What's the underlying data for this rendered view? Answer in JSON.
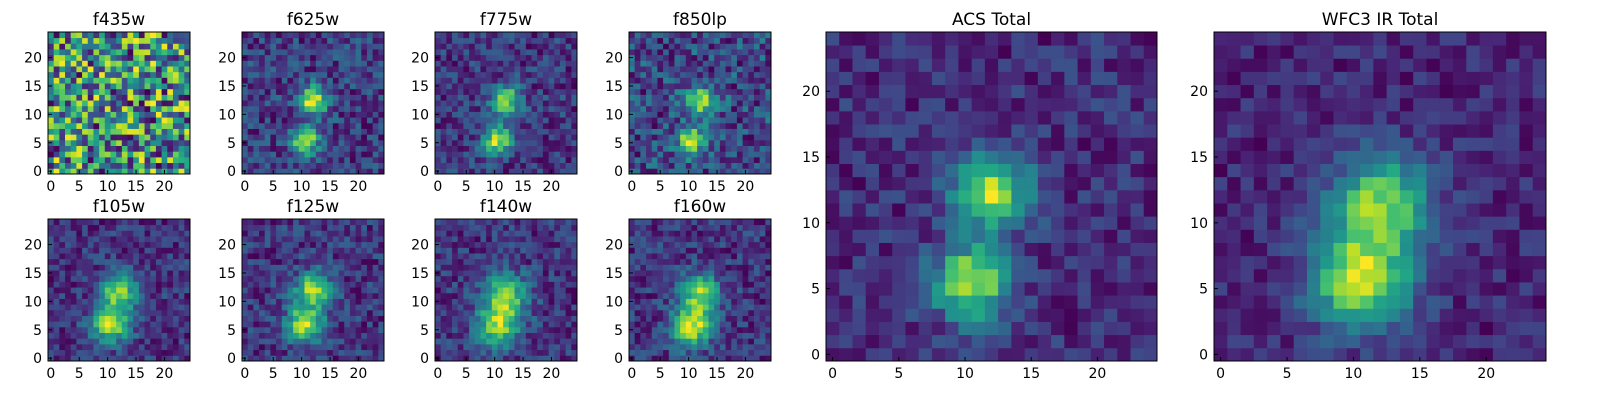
{
  "figure_title": "",
  "chart_data": [
    {
      "type": "heatmap",
      "title": "f435w",
      "colormap": "viridis",
      "grid": false,
      "shape": [
        25,
        25
      ],
      "xlim": [
        -0.5,
        24.5
      ],
      "ylim": [
        -0.5,
        24.5
      ],
      "xticks": [
        0,
        5,
        10,
        15,
        20
      ],
      "yticks": [
        0,
        5,
        10,
        15,
        20
      ],
      "sources": [],
      "noise": 0.38,
      "base": 0.62
    },
    {
      "type": "heatmap",
      "title": "f625w",
      "colormap": "viridis",
      "grid": false,
      "shape": [
        25,
        25
      ],
      "xlim": [
        -0.5,
        24.5
      ],
      "ylim": [
        -0.5,
        24.5
      ],
      "xticks": [
        0,
        5,
        10,
        15,
        20
      ],
      "yticks": [
        0,
        5,
        10,
        15,
        20
      ],
      "sources": [
        {
          "x": 12,
          "y": 12.5,
          "amp": 1.0,
          "sigma": 1.7
        },
        {
          "x": 10.5,
          "y": 5.5,
          "amp": 0.95,
          "sigma": 1.7
        }
      ],
      "noise": 0.22,
      "base": 0.28
    },
    {
      "type": "heatmap",
      "title": "f775w",
      "colormap": "viridis",
      "grid": false,
      "shape": [
        25,
        25
      ],
      "xlim": [
        -0.5,
        24.5
      ],
      "ylim": [
        -0.5,
        24.5
      ],
      "xticks": [
        0,
        5,
        10,
        15,
        20
      ],
      "yticks": [
        0,
        5,
        10,
        15,
        20
      ],
      "sources": [
        {
          "x": 12,
          "y": 12.5,
          "amp": 0.9,
          "sigma": 1.8
        },
        {
          "x": 10.5,
          "y": 5.5,
          "amp": 0.95,
          "sigma": 1.8
        }
      ],
      "noise": 0.22,
      "base": 0.3
    },
    {
      "type": "heatmap",
      "title": "f850lp",
      "colormap": "viridis",
      "grid": false,
      "shape": [
        25,
        25
      ],
      "xlim": [
        -0.5,
        24.5
      ],
      "ylim": [
        -0.5,
        24.5
      ],
      "xticks": [
        0,
        5,
        10,
        15,
        20
      ],
      "yticks": [
        0,
        5,
        10,
        15,
        20
      ],
      "sources": [
        {
          "x": 12,
          "y": 12.5,
          "amp": 0.8,
          "sigma": 1.8
        },
        {
          "x": 10.5,
          "y": 5.5,
          "amp": 0.9,
          "sigma": 1.8
        }
      ],
      "noise": 0.32,
      "base": 0.42
    },
    {
      "type": "heatmap",
      "title": "f105w",
      "colormap": "viridis",
      "grid": false,
      "shape": [
        25,
        25
      ],
      "xlim": [
        -0.5,
        24.5
      ],
      "ylim": [
        -0.5,
        24.5
      ],
      "xticks": [
        0,
        5,
        10,
        15,
        20
      ],
      "yticks": [
        0,
        5,
        10,
        15,
        20
      ],
      "sources": [
        {
          "x": 12,
          "y": 12,
          "amp": 0.85,
          "sigma": 2.3
        },
        {
          "x": 10.5,
          "y": 6,
          "amp": 0.95,
          "sigma": 2.4
        }
      ],
      "noise": 0.2,
      "base": 0.4
    },
    {
      "type": "heatmap",
      "title": "f125w",
      "colormap": "viridis",
      "grid": false,
      "shape": [
        25,
        25
      ],
      "xlim": [
        -0.5,
        24.5
      ],
      "ylim": [
        -0.5,
        24.5
      ],
      "xticks": [
        0,
        5,
        10,
        15,
        20
      ],
      "yticks": [
        0,
        5,
        10,
        15,
        20
      ],
      "sources": [
        {
          "x": 12,
          "y": 12,
          "amp": 0.85,
          "sigma": 2.2
        },
        {
          "x": 10.5,
          "y": 6,
          "amp": 0.95,
          "sigma": 2.2
        }
      ],
      "noise": 0.2,
      "base": 0.3
    },
    {
      "type": "heatmap",
      "title": "f140w",
      "colormap": "viridis",
      "grid": false,
      "shape": [
        25,
        25
      ],
      "xlim": [
        -0.5,
        24.5
      ],
      "ylim": [
        -0.5,
        24.5
      ],
      "xticks": [
        0,
        5,
        10,
        15,
        20
      ],
      "yticks": [
        0,
        5,
        10,
        15,
        20
      ],
      "sources": [
        {
          "x": 12,
          "y": 11,
          "amp": 0.85,
          "sigma": 2.8
        },
        {
          "x": 10.5,
          "y": 5.5,
          "amp": 0.9,
          "sigma": 2.6
        }
      ],
      "noise": 0.22,
      "base": 0.42
    },
    {
      "type": "heatmap",
      "title": "f160w",
      "colormap": "viridis",
      "grid": false,
      "shape": [
        25,
        25
      ],
      "xlim": [
        -0.5,
        24.5
      ],
      "ylim": [
        -0.5,
        24.5
      ],
      "xticks": [
        0,
        5,
        10,
        15,
        20
      ],
      "yticks": [
        0,
        5,
        10,
        15,
        20
      ],
      "sources": [
        {
          "x": 12,
          "y": 11.5,
          "amp": 0.85,
          "sigma": 2.4
        },
        {
          "x": 10.5,
          "y": 5.5,
          "amp": 1.0,
          "sigma": 2.4
        }
      ],
      "noise": 0.2,
      "base": 0.3
    },
    {
      "type": "heatmap",
      "title": "ACS Total",
      "colormap": "viridis",
      "grid": false,
      "shape": [
        25,
        25
      ],
      "xlim": [
        -0.5,
        24.5
      ],
      "ylim": [
        -0.5,
        24.5
      ],
      "xticks": [
        0,
        5,
        10,
        15,
        20
      ],
      "yticks": [
        0,
        5,
        10,
        15,
        20
      ],
      "sources": [
        {
          "x": 12,
          "y": 12.5,
          "amp": 0.85,
          "sigma": 2.0
        },
        {
          "x": 10.5,
          "y": 5.5,
          "amp": 0.85,
          "sigma": 2.0
        }
      ],
      "noise": 0.14,
      "base": 0.38
    },
    {
      "type": "heatmap",
      "title": "WFC3 IR Total",
      "colormap": "viridis",
      "grid": false,
      "shape": [
        25,
        25
      ],
      "xlim": [
        -0.5,
        24.5
      ],
      "ylim": [
        -0.5,
        24.5
      ],
      "xticks": [
        0,
        5,
        10,
        15,
        20
      ],
      "yticks": [
        0,
        5,
        10,
        15,
        20
      ],
      "sources": [
        {
          "x": 12,
          "y": 11.5,
          "amp": 0.75,
          "sigma": 2.6
        },
        {
          "x": 10.5,
          "y": 5.5,
          "amp": 0.85,
          "sigma": 2.6
        }
      ],
      "noise": 0.12,
      "base": 0.28
    }
  ]
}
